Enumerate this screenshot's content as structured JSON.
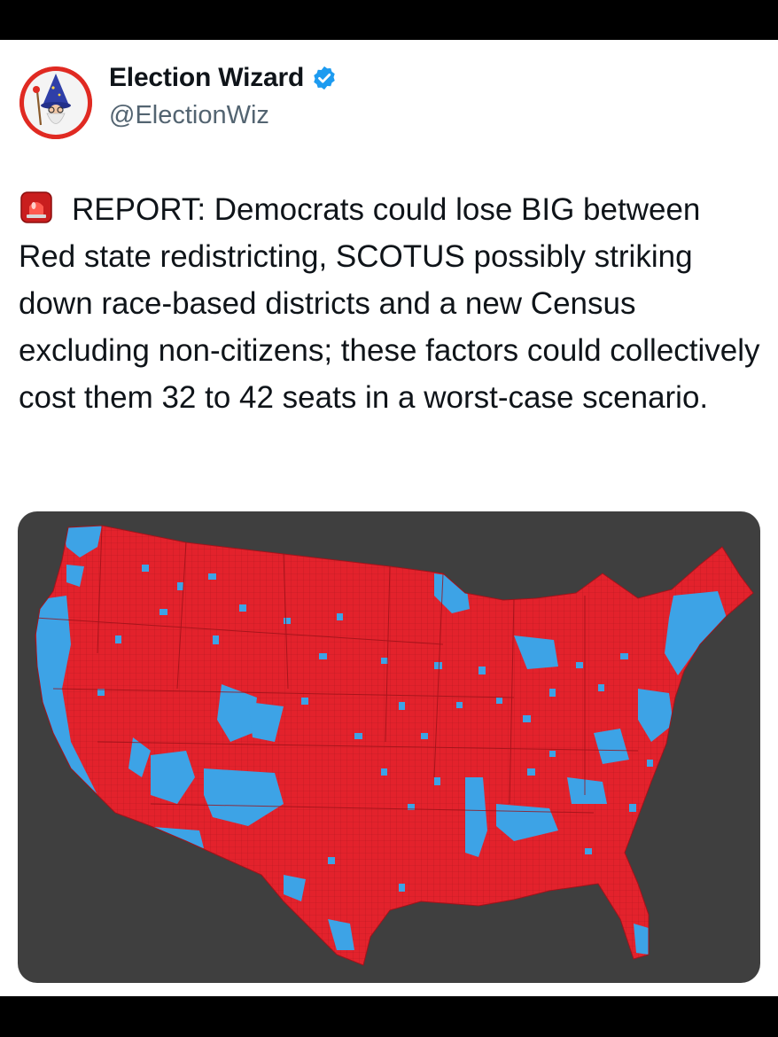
{
  "tweet": {
    "author": {
      "display_name": "Election Wizard",
      "handle": "@ElectionWiz",
      "verified": true,
      "avatar_icon": "wizard-gnome-avatar-icon"
    },
    "siren_icon": "rotating-light-emoji",
    "text": "REPORT: Democrats could lose BIG between Red state redistricting, SCOTUS possibly striking down race-based districts and a new Census excluding non-citizens; these factors could collectively cost them 32 to 42 seats in a worst-case scenario."
  },
  "media": {
    "type": "map",
    "description_icon": "us-county-election-map",
    "colors": {
      "background": "#3f3f3f",
      "republican": "#e3222c",
      "democrat": "#3da3e6"
    }
  },
  "colors": {
    "text": "#0f1419",
    "secondary": "#536471",
    "verified": "#1d9bf0",
    "chrome": "#000000"
  }
}
